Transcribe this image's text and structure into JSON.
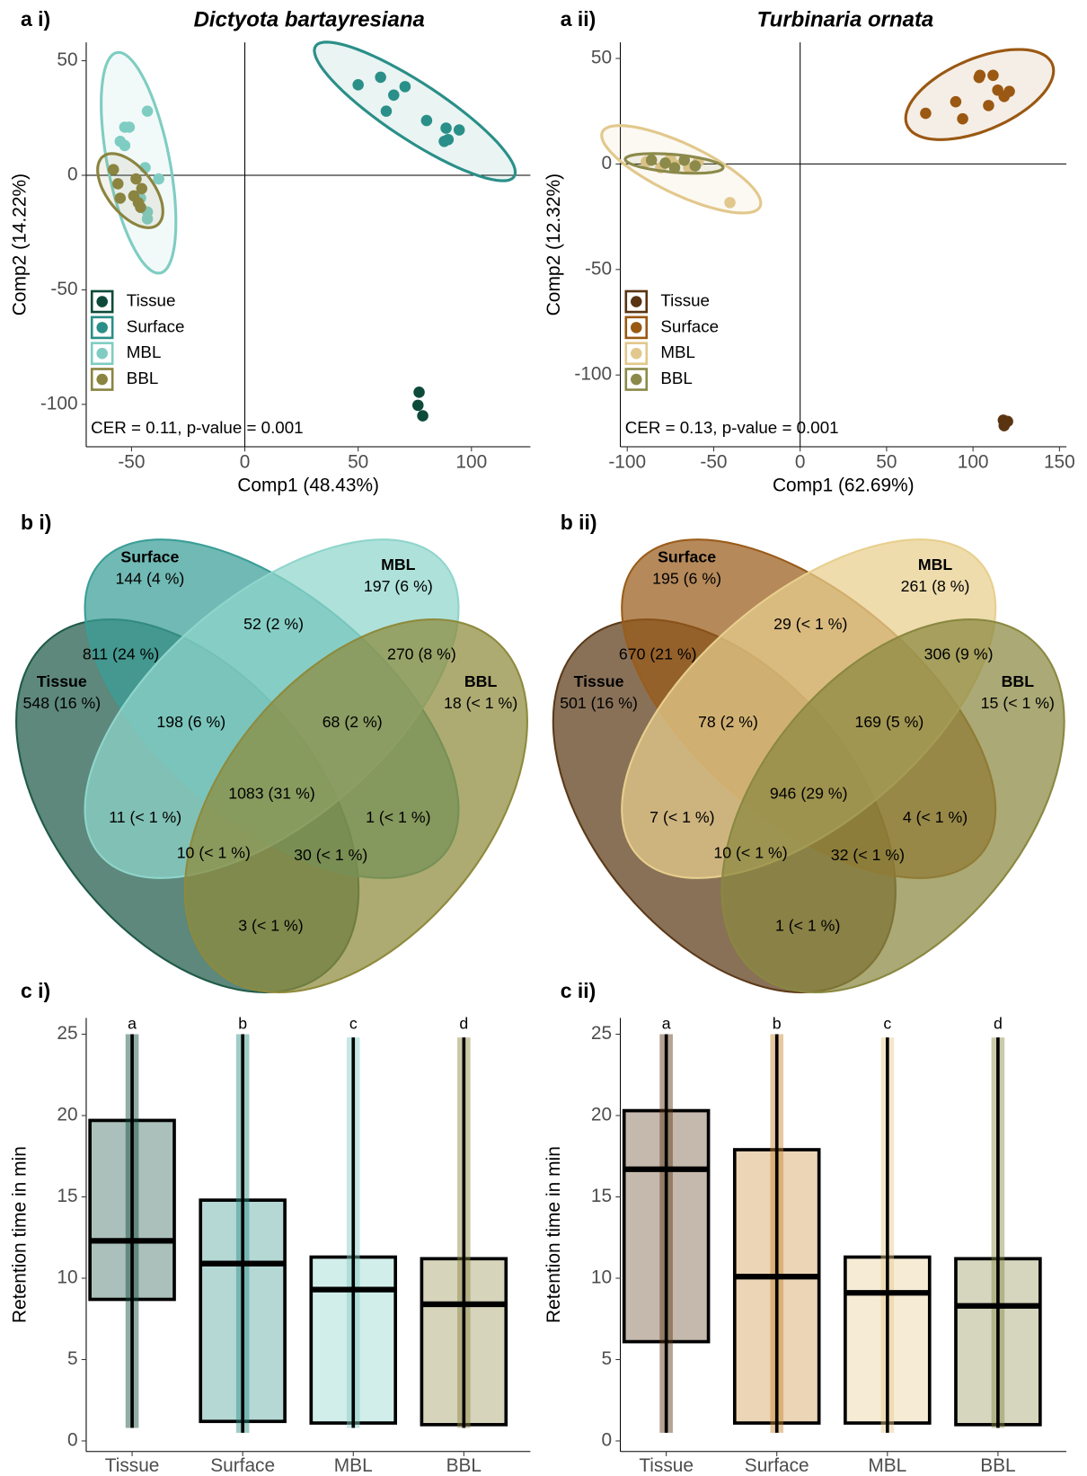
{
  "chart_data": [
    {
      "type": "scatter",
      "panel": "a i)",
      "title": "Dictyota bartayresiana",
      "x_label": "Comp1 (48.43%)",
      "y_label": "Comp2 (14.22%)",
      "annotation": "CER = 0.11, p-value = 0.001",
      "legend": "lower-left",
      "xlim": [
        -70,
        126
      ],
      "ylim": [
        -118.5,
        58
      ],
      "xticks": [
        -50,
        0,
        50,
        100
      ],
      "yticks": [
        -100,
        -50,
        0,
        50
      ],
      "series": [
        {
          "name": "Tissue",
          "color": "#0d4a3a",
          "x": [
            76.9,
            76.4,
            78.5
          ],
          "values": [
            -94.7,
            -100.4,
            -105
          ]
        },
        {
          "name": "Surface",
          "color": "#2a8f88",
          "x": [
            50,
            59.9,
            70.7,
            65.7,
            62.4,
            80.2,
            88.8,
            94.6,
            89.7,
            88
          ],
          "values": [
            39.5,
            42.8,
            38.7,
            35,
            28,
            23.9,
            20.6,
            19.8,
            15.6,
            14.8
          ]
        },
        {
          "name": "MBL",
          "color": "#7fcdc2",
          "x": [
            -43,
            -51,
            -53,
            -55,
            -53,
            -44,
            -38,
            -43,
            -43,
            -46
          ],
          "values": [
            28,
            21,
            21,
            14.8,
            13,
            3.3,
            -1.6,
            -16,
            -19,
            -10
          ]
        },
        {
          "name": "BBL",
          "color": "#8b8440",
          "x": [
            -58,
            -56,
            -55,
            -49,
            -47,
            -46,
            -45.5,
            -48
          ],
          "values": [
            2.5,
            -3.7,
            -10,
            -9,
            -12,
            -14,
            -5.8,
            -1.6
          ]
        }
      ]
    },
    {
      "type": "scatter",
      "panel": "a ii)",
      "title": "Turbinaria ornata",
      "x_label": "Comp1 (62.69%)",
      "y_label": "Comp2 (12.32%)",
      "annotation": "CER = 0.13, p-value = 0.001",
      "legend": "lower-left",
      "xlim": [
        -104,
        154
      ],
      "ylim": [
        -134,
        57.6
      ],
      "xticks": [
        -100,
        -50,
        0,
        50,
        100,
        150
      ],
      "yticks": [
        -100,
        -50,
        0,
        50
      ],
      "series": [
        {
          "name": "Tissue",
          "color": "#5a3411",
          "x": [
            117.5,
            120,
            118
          ],
          "values": [
            -121.4,
            -122,
            -124
          ]
        },
        {
          "name": "Surface",
          "color": "#9a5812",
          "x": [
            72.6,
            90,
            103.5,
            111.6,
            114.3,
            118,
            121,
            109,
            94,
            104
          ],
          "values": [
            24,
            29.5,
            41,
            42,
            35,
            32,
            34.4,
            27.7,
            21.4,
            42
          ]
        },
        {
          "name": "MBL",
          "color": "#e2c88c",
          "x": [
            -89,
            -80.7,
            -72.6,
            -64.5,
            -59,
            -40.6,
            -75
          ],
          "values": [
            1,
            -1.8,
            -0.4,
            -1.8,
            1,
            -18.3,
            2.7
          ]
        },
        {
          "name": "BBL",
          "color": "#8b8a4a",
          "x": [
            -86,
            -78,
            -67,
            -60.7,
            -72.6
          ],
          "values": [
            1.8,
            0.4,
            1.8,
            -0.9,
            -1.8
          ]
        }
      ]
    },
    {
      "type": "venn",
      "panel": "b i)",
      "sets": [
        {
          "name": "Tissue",
          "only": "548 (16 %)",
          "color": "#1f5a48"
        },
        {
          "name": "Surface",
          "only": "144 (4 %)",
          "color": "#3a9e97"
        },
        {
          "name": "MBL",
          "only": "197 (6 %)",
          "color": "#8fd5cc"
        },
        {
          "name": "BBL",
          "only": "18 (< 1 %)",
          "color": "#8e8a3c"
        }
      ],
      "regions": [
        "52 (2 %)",
        "811 (24 %)",
        "270 (8 %)",
        "198 (6 %)",
        "68 (2 %)",
        "1083 (31 %)",
        "11 (< 1 %)",
        "1 (< 1 %)",
        "10 (< 1 %)",
        "30 (< 1 %)",
        "3 (< 1 %)"
      ]
    },
    {
      "type": "venn",
      "panel": "b ii)",
      "sets": [
        {
          "name": "Tissue",
          "only": "501 (16 %)",
          "color": "#5c3a18"
        },
        {
          "name": "Surface",
          "only": "195 (6 %)",
          "color": "#9a5c1a"
        },
        {
          "name": "MBL",
          "only": "261 (8 %)",
          "color": "#e8cf8e"
        },
        {
          "name": "BBL",
          "only": "15 (< 1 %)",
          "color": "#8a8840"
        }
      ],
      "regions": [
        "29 (< 1 %)",
        "670 (21 %)",
        "306 (9 %)",
        "78 (2 %)",
        "169 (5 %)",
        "946 (29 %)",
        "7 (< 1 %)",
        "4 (< 1 %)",
        "10 (< 1 %)",
        "32 (< 1 %)",
        "1 (< 1 %)"
      ]
    },
    {
      "type": "box",
      "panel": "c i)",
      "y_label": "Retention time in min",
      "ylim": [
        -0.65,
        26
      ],
      "yticks": [
        0,
        5,
        10,
        15,
        20,
        25
      ],
      "categories": [
        "Tissue",
        "Surface",
        "MBL",
        "BBL"
      ],
      "letters": [
        "a",
        "b",
        "c",
        "d"
      ],
      "colors": [
        "#0d4a3a",
        "#2a8f88",
        "#7fcdc2",
        "#8b8440"
      ],
      "boxes": [
        {
          "whisker_low": 0.8,
          "q1": 8.7,
          "median": 12.3,
          "q3": 19.7,
          "whisker_high": 25
        },
        {
          "whisker_low": 0.5,
          "q1": 1.2,
          "median": 10.9,
          "q3": 14.8,
          "whisker_high": 25
        },
        {
          "whisker_low": 0.8,
          "q1": 1.1,
          "median": 9.3,
          "q3": 11.3,
          "whisker_high": 24.8
        },
        {
          "whisker_low": 0.8,
          "q1": 1,
          "median": 8.4,
          "q3": 11.2,
          "whisker_high": 24.8
        }
      ]
    },
    {
      "type": "box",
      "panel": "c ii)",
      "y_label": "Retention time in min",
      "ylim": [
        -0.65,
        26
      ],
      "yticks": [
        0,
        5,
        10,
        15,
        20,
        25
      ],
      "categories": [
        "Tissue",
        "Surface",
        "MBL",
        "BBL"
      ],
      "letters": [
        "a",
        "b",
        "c",
        "d"
      ],
      "colors": [
        "#5a3411",
        "#c8862e",
        "#e5c98a",
        "#8a8a48"
      ],
      "boxes": [
        {
          "whisker_low": 0.5,
          "q1": 6.1,
          "median": 16.7,
          "q3": 20.3,
          "whisker_high": 25
        },
        {
          "whisker_low": 0.5,
          "q1": 1.1,
          "median": 10.1,
          "q3": 17.9,
          "whisker_high": 25
        },
        {
          "whisker_low": 0.5,
          "q1": 1.1,
          "median": 9.1,
          "q3": 11.3,
          "whisker_high": 24.8
        },
        {
          "whisker_low": 0.8,
          "q1": 1,
          "median": 8.3,
          "q3": 11.2,
          "whisker_high": 24.8
        }
      ]
    }
  ]
}
